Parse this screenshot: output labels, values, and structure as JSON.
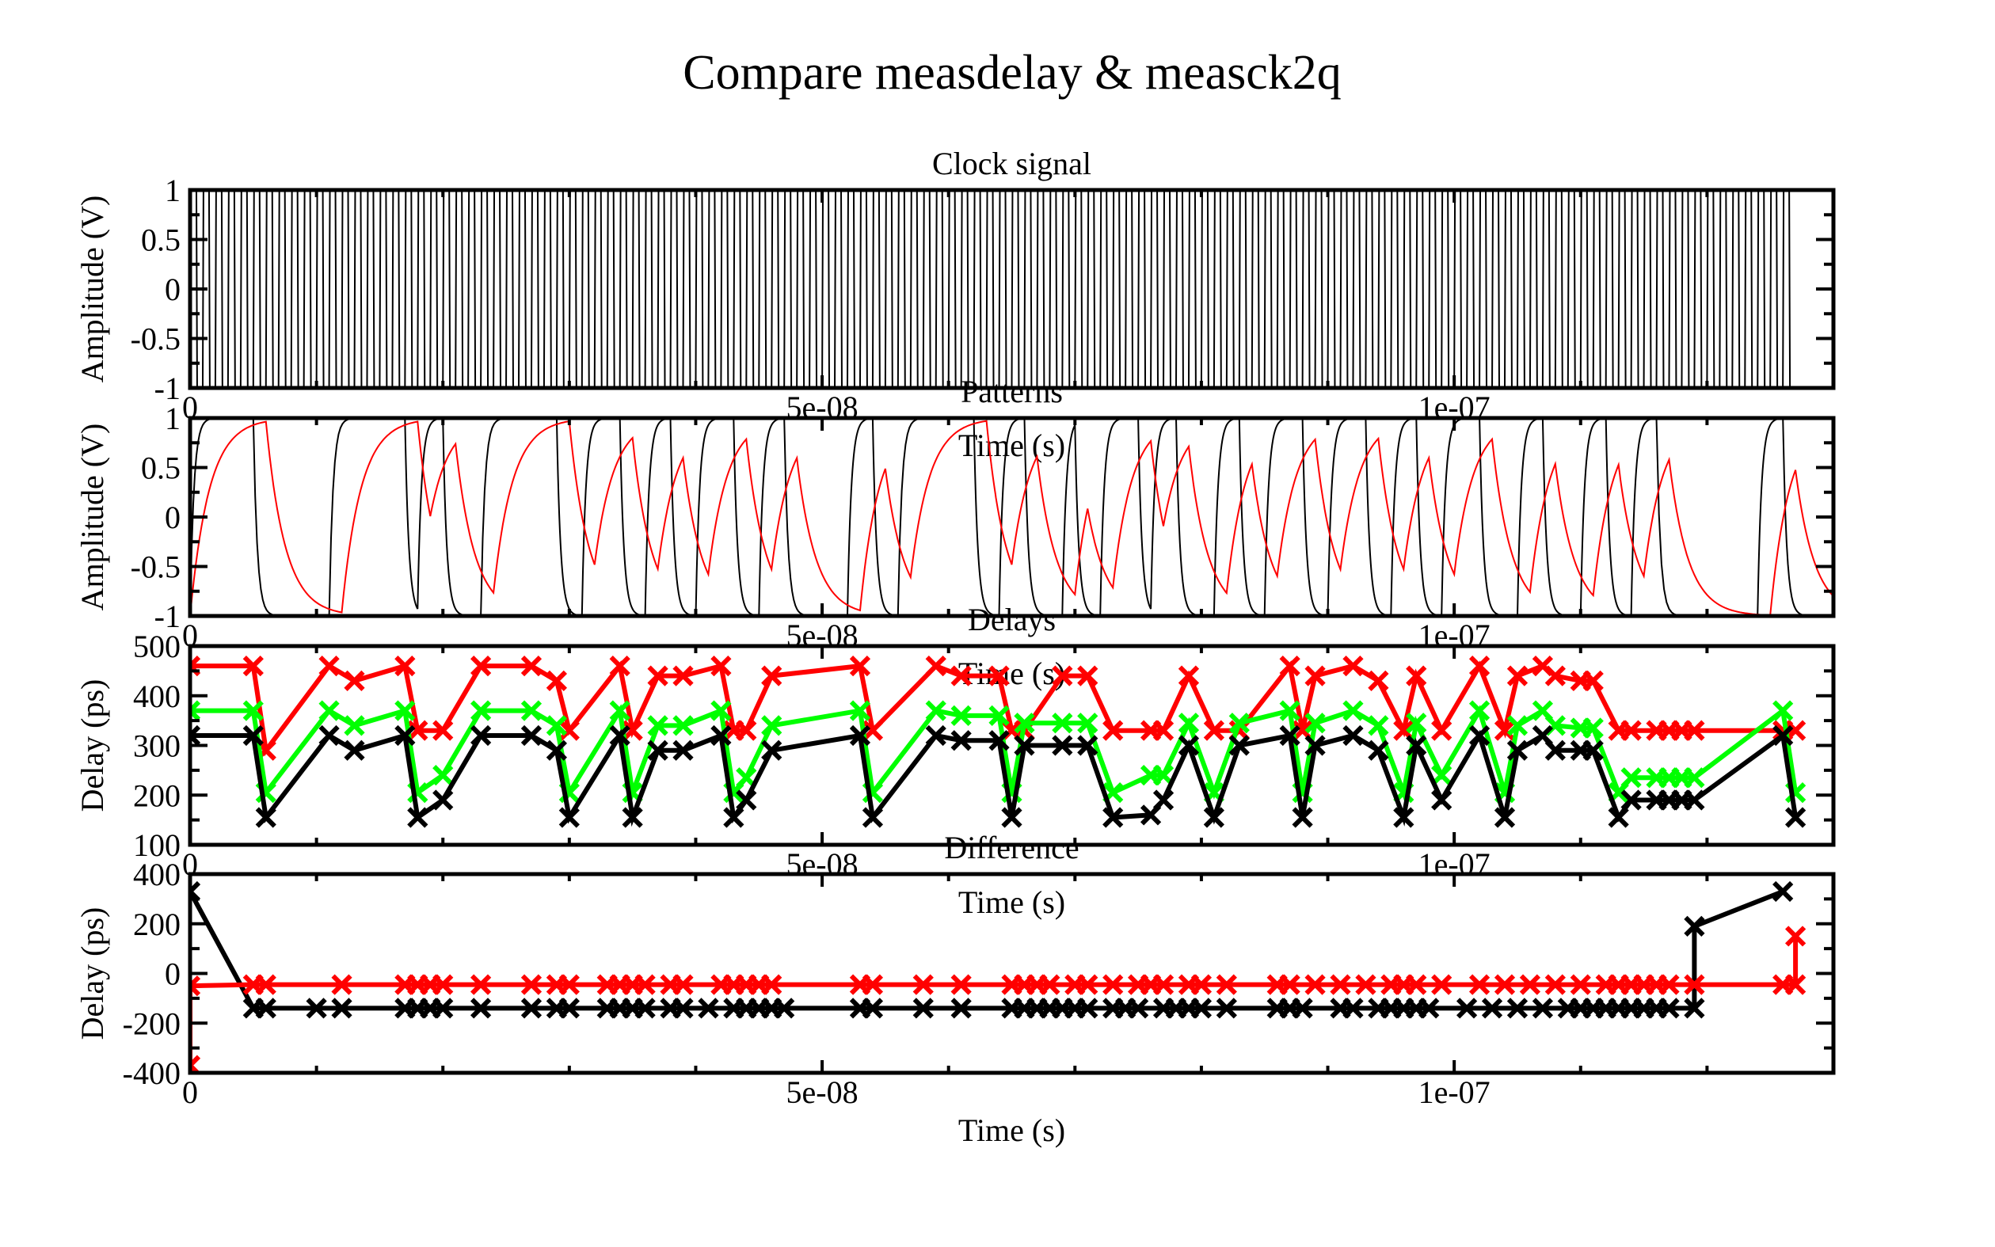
{
  "figure": {
    "title": "Compare measdelay & measck2q"
  },
  "chart_data": [
    {
      "type": "line",
      "title": "Clock signal",
      "xlabel": "Time (s)",
      "ylabel": "Amplitude (V)",
      "xlim": [
        0,
        1.3e-07
      ],
      "ylim": [
        -1,
        1
      ],
      "xticks": [
        0,
        5e-08,
        1e-07
      ],
      "xtick_labels": [
        "0",
        "5e-08",
        "1e-07"
      ],
      "yticks": [
        1,
        0.5,
        0,
        -0.5,
        -1
      ],
      "ytick_labels": [
        "1",
        "0.5",
        "0",
        "-0.5",
        "-1"
      ],
      "series": [
        {
          "color": "#000000",
          "period": 1e-09,
          "t_end": 1.265e-07,
          "low": -1,
          "high": 1
        }
      ]
    },
    {
      "type": "line",
      "title": "Patterns",
      "xlabel": "Time (s)",
      "ylabel": "Amplitude (V)",
      "xlim": [
        0,
        1.3e-07
      ],
      "ylim": [
        -1,
        1
      ],
      "xticks": [
        0,
        5e-08,
        1e-07
      ],
      "xtick_labels": [
        "0",
        "5e-08",
        "1e-07"
      ],
      "yticks": [
        1,
        0.5,
        0,
        -0.5,
        -1
      ],
      "ytick_labels": [
        "1",
        "0.5",
        "0",
        "-0.5",
        "-1"
      ],
      "series": [
        {
          "color": "#000000",
          "tau": 3e-10,
          "edges": [
            [
              0,
              1
            ],
            [
              5e-09,
              -1
            ],
            [
              1.1e-08,
              1
            ],
            [
              1.7e-08,
              -1
            ],
            [
              1.8e-08,
              1
            ],
            [
              2e-08,
              -1
            ],
            [
              2.3e-08,
              1
            ],
            [
              2.9e-08,
              -1
            ],
            [
              3.1e-08,
              1
            ],
            [
              3.4e-08,
              -1
            ],
            [
              3.6e-08,
              1
            ],
            [
              3.8e-08,
              -1
            ],
            [
              4e-08,
              1
            ],
            [
              4.3e-08,
              -1
            ],
            [
              4.5e-08,
              1
            ],
            [
              4.7e-08,
              -1
            ],
            [
              5.2e-08,
              1
            ],
            [
              5.4e-08,
              -1
            ],
            [
              5.6e-08,
              1
            ],
            [
              6.2e-08,
              -1
            ],
            [
              6.4e-08,
              1
            ],
            [
              6.6e-08,
              -1
            ],
            [
              6.9e-08,
              1
            ],
            [
              7e-08,
              -1
            ],
            [
              7.2e-08,
              1
            ],
            [
              7.5e-08,
              -1
            ],
            [
              7.6e-08,
              1
            ],
            [
              7.8e-08,
              -1
            ],
            [
              8.1e-08,
              1
            ],
            [
              8.3e-08,
              -1
            ],
            [
              8.5e-08,
              1
            ],
            [
              8.8e-08,
              -1
            ],
            [
              9e-08,
              1
            ],
            [
              9.3e-08,
              -1
            ],
            [
              9.5e-08,
              1
            ],
            [
              9.7e-08,
              -1
            ],
            [
              9.9e-08,
              1
            ],
            [
              1.02e-07,
              -1
            ],
            [
              1.05e-07,
              1
            ],
            [
              1.07e-07,
              -1
            ],
            [
              1.1e-07,
              1
            ],
            [
              1.12e-07,
              -1
            ],
            [
              1.14e-07,
              1
            ],
            [
              1.16e-07,
              -1
            ],
            [
              1.24e-07,
              1
            ],
            [
              1.26e-07,
              -1
            ]
          ]
        },
        {
          "color": "#ff0000",
          "tau": 1.5e-09,
          "edges": [
            [
              0,
              1
            ],
            [
              6e-09,
              -1
            ],
            [
              1.2e-08,
              1
            ],
            [
              1.8e-08,
              -1
            ],
            [
              1.9e-08,
              1
            ],
            [
              2.1e-08,
              -1
            ],
            [
              2.4e-08,
              1
            ],
            [
              3e-08,
              -1
            ],
            [
              3.2e-08,
              1
            ],
            [
              3.5e-08,
              -1
            ],
            [
              3.7e-08,
              1
            ],
            [
              3.9e-08,
              -1
            ],
            [
              4.1e-08,
              1
            ],
            [
              4.4e-08,
              -1
            ],
            [
              4.6e-08,
              1
            ],
            [
              4.8e-08,
              -1
            ],
            [
              5.3e-08,
              1
            ],
            [
              5.5e-08,
              -1
            ],
            [
              5.7e-08,
              1
            ],
            [
              6.3e-08,
              -1
            ],
            [
              6.5e-08,
              1
            ],
            [
              6.7e-08,
              -1
            ],
            [
              7e-08,
              1
            ],
            [
              7.1e-08,
              -1
            ],
            [
              7.3e-08,
              1
            ],
            [
              7.6e-08,
              -1
            ],
            [
              7.7e-08,
              1
            ],
            [
              7.9e-08,
              -1
            ],
            [
              8.2e-08,
              1
            ],
            [
              8.4e-08,
              -1
            ],
            [
              8.6e-08,
              1
            ],
            [
              8.9e-08,
              -1
            ],
            [
              9.1e-08,
              1
            ],
            [
              9.4e-08,
              -1
            ],
            [
              9.6e-08,
              1
            ],
            [
              9.8e-08,
              -1
            ],
            [
              1e-07,
              1
            ],
            [
              1.03e-07,
              -1
            ],
            [
              1.06e-07,
              1
            ],
            [
              1.08e-07,
              -1
            ],
            [
              1.11e-07,
              1
            ],
            [
              1.13e-07,
              -1
            ],
            [
              1.15e-07,
              1
            ],
            [
              1.17e-07,
              -1
            ],
            [
              1.25e-07,
              1
            ],
            [
              1.27e-07,
              -1
            ]
          ]
        }
      ]
    },
    {
      "type": "line",
      "title": "Delays",
      "xlabel": "Time (s)",
      "ylabel": "Delay (ps)",
      "xlim": [
        0,
        1.3e-07
      ],
      "ylim": [
        100,
        500
      ],
      "xticks": [
        0,
        5e-08,
        1e-07
      ],
      "xtick_labels": [
        "0",
        "5e-08",
        "1e-07"
      ],
      "yticks": [
        500,
        400,
        300,
        200,
        100
      ],
      "ytick_labels": [
        "500",
        "400",
        "300",
        "200",
        "100"
      ],
      "x": [
        0,
        5e-09,
        6e-09,
        1.1e-08,
        1.3e-08,
        1.7e-08,
        1.8e-08,
        2e-08,
        2.3e-08,
        2.7e-08,
        2.9e-08,
        3e-08,
        3.4e-08,
        3.5e-08,
        3.7e-08,
        3.9e-08,
        4.2e-08,
        4.3e-08,
        4.4e-08,
        4.6e-08,
        5.3e-08,
        5.4e-08,
        5.9e-08,
        6.1e-08,
        6.4e-08,
        6.5e-08,
        6.6e-08,
        6.9e-08,
        7.1e-08,
        7.3e-08,
        7.6e-08,
        7.7e-08,
        7.9e-08,
        8.1e-08,
        8.3e-08,
        8.7e-08,
        8.8e-08,
        8.9e-08,
        9.2e-08,
        9.4e-08,
        9.6e-08,
        9.7e-08,
        9.9e-08,
        1.02e-07,
        1.04e-07,
        1.05e-07,
        1.07e-07,
        1.08e-07,
        1.1e-07,
        1.11e-07,
        1.13e-07,
        1.14e-07,
        1.16e-07,
        1.17e-07,
        1.18e-07,
        1.19e-07,
        1.26e-07,
        1.27e-07
      ],
      "series": [
        {
          "color": "#ff0000",
          "values": [
            460,
            460,
            290,
            460,
            430,
            460,
            330,
            330,
            460,
            460,
            430,
            330,
            460,
            330,
            440,
            440,
            460,
            330,
            330,
            440,
            460,
            330,
            460,
            440,
            440,
            330,
            330,
            440,
            440,
            330,
            330,
            330,
            440,
            330,
            330,
            460,
            330,
            440,
            460,
            430,
            330,
            440,
            330,
            460,
            330,
            440,
            460,
            440,
            430,
            430,
            330,
            330,
            330,
            330,
            330,
            330,
            330,
            330
          ]
        },
        {
          "color": "#00ff00",
          "values": [
            370,
            370,
            205,
            370,
            340,
            370,
            205,
            240,
            370,
            370,
            340,
            205,
            370,
            205,
            340,
            340,
            370,
            205,
            235,
            340,
            370,
            205,
            370,
            360,
            360,
            205,
            345,
            345,
            345,
            205,
            240,
            240,
            345,
            205,
            345,
            370,
            205,
            345,
            370,
            340,
            205,
            345,
            240,
            370,
            205,
            340,
            370,
            340,
            335,
            335,
            205,
            235,
            235,
            235,
            235,
            235,
            370,
            205
          ]
        },
        {
          "color": "#000000",
          "values": [
            320,
            320,
            155,
            320,
            290,
            320,
            155,
            190,
            320,
            320,
            290,
            155,
            320,
            155,
            290,
            290,
            320,
            155,
            190,
            290,
            320,
            155,
            320,
            310,
            310,
            155,
            300,
            300,
            300,
            155,
            160,
            190,
            300,
            155,
            300,
            320,
            155,
            300,
            320,
            290,
            155,
            300,
            190,
            320,
            155,
            290,
            320,
            290,
            290,
            290,
            155,
            190,
            190,
            190,
            190,
            190,
            320,
            155
          ]
        }
      ]
    },
    {
      "type": "line",
      "title": "Difference",
      "xlabel": "Time (s)",
      "ylabel": "Delay (ps)",
      "xlim": [
        0,
        1.3e-07
      ],
      "ylim": [
        -400,
        400
      ],
      "xticks": [
        0,
        5e-08,
        1e-07
      ],
      "xtick_labels": [
        "0",
        "5e-08",
        "1e-07"
      ],
      "yticks": [
        400,
        200,
        0,
        -200,
        -400
      ],
      "ytick_labels": [
        "400",
        "200",
        "0",
        "-200",
        "-400"
      ],
      "series": [
        {
          "color": "#000000",
          "x": [
            0,
            5e-09,
            6e-09,
            1e-08,
            1.2e-08,
            1.7e-08,
            1.8e-08,
            1.9e-08,
            2e-08,
            2.3e-08,
            2.7e-08,
            2.9e-08,
            3e-08,
            3.3e-08,
            3.4e-08,
            3.5e-08,
            3.6e-08,
            3.8e-08,
            3.9e-08,
            4.1e-08,
            4.3e-08,
            4.4e-08,
            4.5e-08,
            4.6e-08,
            4.7e-08,
            5.3e-08,
            5.4e-08,
            5.8e-08,
            6.1e-08,
            6.5e-08,
            6.6e-08,
            6.7e-08,
            6.8e-08,
            6.9e-08,
            7e-08,
            7.1e-08,
            7.3e-08,
            7.4e-08,
            7.5e-08,
            7.7e-08,
            7.8e-08,
            7.9e-08,
            8e-08,
            8.2e-08,
            8.6e-08,
            8.7e-08,
            8.8e-08,
            9.1e-08,
            9.2e-08,
            9.4e-08,
            9.5e-08,
            9.6e-08,
            9.7e-08,
            9.8e-08,
            1.01e-07,
            1.03e-07,
            1.05e-07,
            1.07e-07,
            1.09e-07,
            1.1e-07,
            1.11e-07,
            1.12e-07,
            1.13e-07,
            1.14e-07,
            1.15e-07,
            1.16e-07,
            1.17e-07,
            1.19e-07,
            1.19e-07,
            1.26e-07
          ],
          "values": [
            330,
            -140,
            -140,
            -140,
            -140,
            -140,
            -140,
            -140,
            -140,
            -140,
            -140,
            -140,
            -140,
            -140,
            -140,
            -140,
            -140,
            -140,
            -140,
            -140,
            -140,
            -140,
            -140,
            -140,
            -140,
            -140,
            -140,
            -140,
            -140,
            -140,
            -140,
            -140,
            -140,
            -140,
            -140,
            -140,
            -140,
            -140,
            -140,
            -140,
            -140,
            -140,
            -140,
            -140,
            -140,
            -140,
            -140,
            -140,
            -140,
            -140,
            -140,
            -140,
            -140,
            -140,
            -140,
            -140,
            -140,
            -140,
            -140,
            -140,
            -140,
            -140,
            -140,
            -140,
            -140,
            -140,
            -140,
            -140,
            190,
            330
          ]
        },
        {
          "color": "#ff0000",
          "x": [
            0,
            0,
            5e-09,
            6e-09,
            1.2e-08,
            1.7e-08,
            1.8e-08,
            1.9e-08,
            2e-08,
            2.3e-08,
            2.7e-08,
            2.9e-08,
            3e-08,
            3.3e-08,
            3.4e-08,
            3.5e-08,
            3.6e-08,
            3.8e-08,
            3.9e-08,
            4.2e-08,
            4.3e-08,
            4.4e-08,
            4.5e-08,
            4.6e-08,
            5.3e-08,
            5.4e-08,
            5.8e-08,
            6.1e-08,
            6.5e-08,
            6.6e-08,
            6.7e-08,
            6.8e-08,
            7e-08,
            7.1e-08,
            7.3e-08,
            7.5e-08,
            7.6e-08,
            7.7e-08,
            7.9e-08,
            8e-08,
            8.2e-08,
            8.6e-08,
            8.7e-08,
            8.9e-08,
            9.1e-08,
            9.3e-08,
            9.5e-08,
            9.6e-08,
            9.7e-08,
            9.9e-08,
            1.02e-07,
            1.04e-07,
            1.06e-07,
            1.08e-07,
            1.1e-07,
            1.12e-07,
            1.13e-07,
            1.14e-07,
            1.15e-07,
            1.16e-07,
            1.17e-07,
            1.19e-07,
            1.26e-07,
            1.27e-07,
            1.27e-07
          ],
          "values": [
            -370,
            -50,
            -45,
            -45,
            -45,
            -45,
            -45,
            -45,
            -45,
            -45,
            -45,
            -45,
            -45,
            -45,
            -45,
            -45,
            -45,
            -45,
            -45,
            -45,
            -45,
            -45,
            -45,
            -45,
            -45,
            -45,
            -45,
            -45,
            -45,
            -45,
            -45,
            -45,
            -45,
            -45,
            -45,
            -45,
            -45,
            -45,
            -45,
            -45,
            -45,
            -45,
            -45,
            -45,
            -45,
            -45,
            -45,
            -45,
            -45,
            -45,
            -45,
            -45,
            -45,
            -45,
            -45,
            -45,
            -45,
            -45,
            -45,
            -45,
            -45,
            -45,
            -45,
            -45,
            150
          ]
        }
      ]
    }
  ]
}
